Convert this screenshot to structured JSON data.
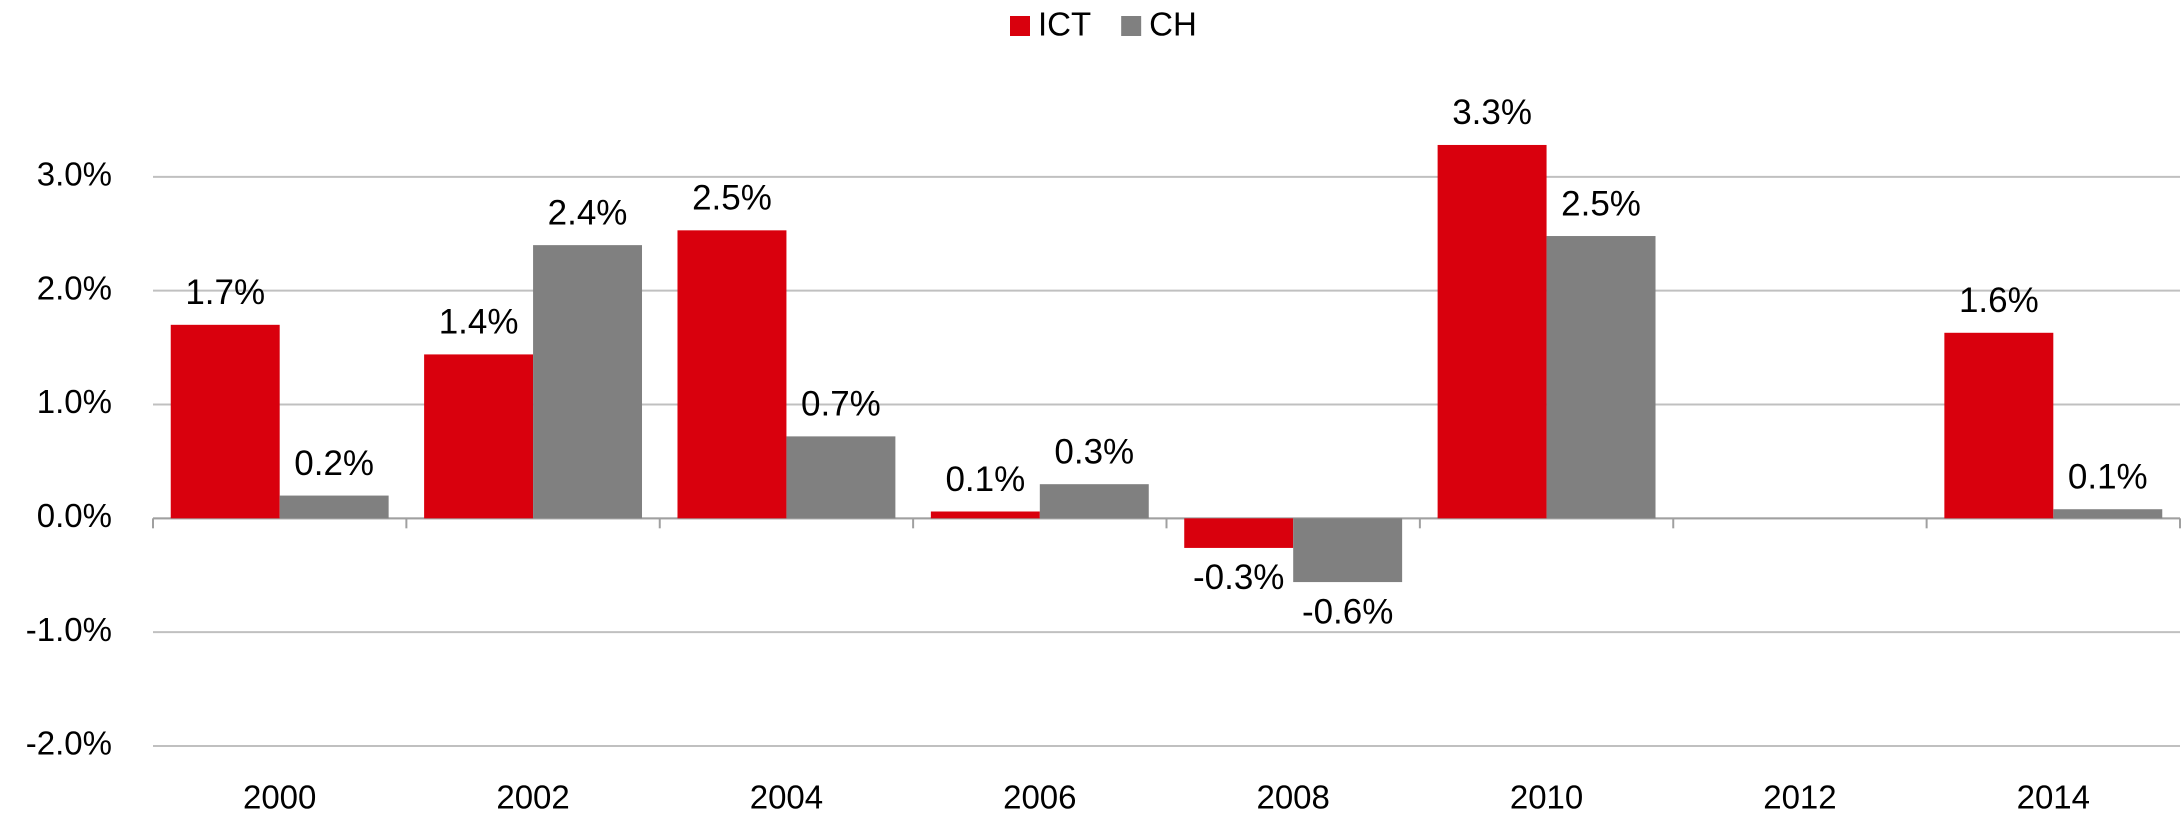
{
  "chart_data": {
    "type": "bar",
    "categories": [
      "2000",
      "2002",
      "2004",
      "2006",
      "2008",
      "2010",
      "2012",
      "2014"
    ],
    "series": [
      {
        "name": "ICT",
        "color": "#d9000d",
        "values": [
          1.7,
          1.44,
          2.53,
          0.06,
          -0.26,
          3.28,
          null,
          1.63
        ],
        "value_labels": [
          "1.7%",
          "1.4%",
          "2.5%",
          "0.1%",
          "-0.3%",
          "3.3%",
          null,
          "1.6%"
        ]
      },
      {
        "name": "CH",
        "color": "#808080",
        "values": [
          0.2,
          2.4,
          0.72,
          0.3,
          -0.56,
          2.48,
          null,
          0.08
        ],
        "value_labels": [
          "0.2%",
          "2.4%",
          "0.7%",
          "0.3%",
          "-0.6%",
          "2.5%",
          null,
          "0.1%"
        ]
      }
    ],
    "ylim": [
      -2,
      4
    ],
    "yticks": [
      {
        "value": -2,
        "label": "-2.0%"
      },
      {
        "value": -1,
        "label": "-1.0%"
      },
      {
        "value": 0,
        "label": "0.0%"
      },
      {
        "value": 1,
        "label": "1.0%"
      },
      {
        "value": 2,
        "label": "2.0%"
      },
      {
        "value": 3,
        "label": "3.0%"
      }
    ],
    "grid": true,
    "legend": "top"
  }
}
